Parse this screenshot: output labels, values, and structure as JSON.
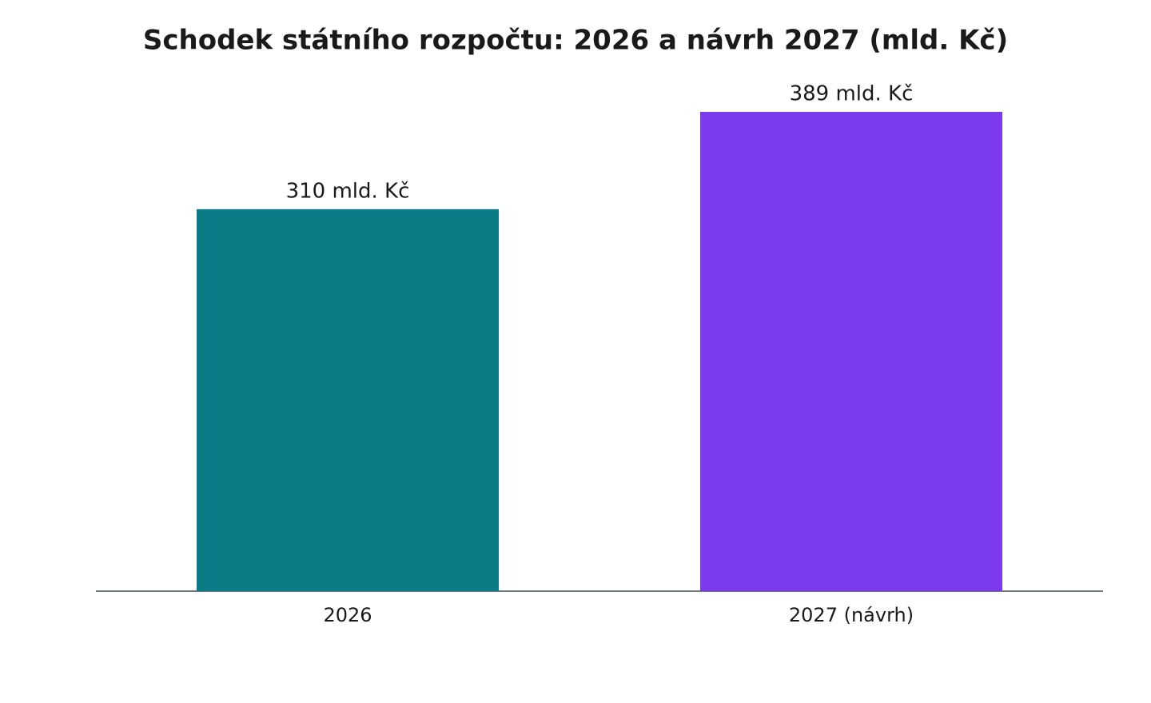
{
  "chart_data": {
    "type": "bar",
    "title": "Schodek státního rozpočtu: 2026 a návrh 2027 (mld. Kč)",
    "categories": [
      "2026",
      "2027 (návrh)"
    ],
    "values": [
      310,
      389
    ],
    "value_labels": [
      "310 mld. Kč",
      "389 mld. Kč"
    ],
    "colors": [
      "#0b7b85",
      "#7b3aec"
    ]
  }
}
